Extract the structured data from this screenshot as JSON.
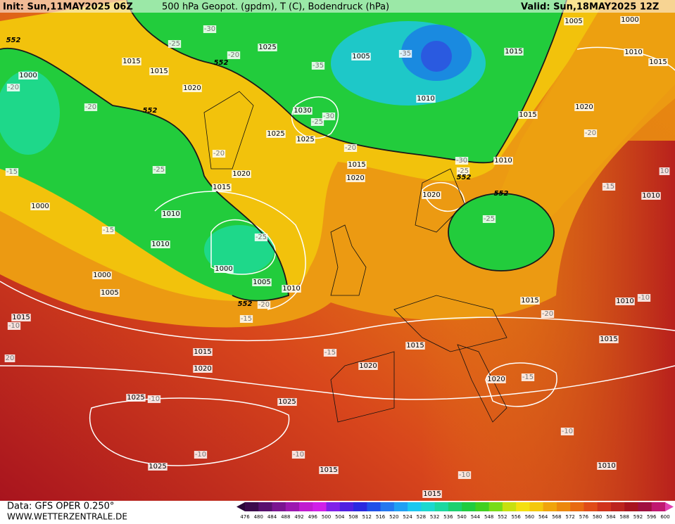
{
  "header": {
    "init": "Init: Sun,11MAY2025 06Z",
    "title": "500 hPa Geopot. (gpdm), T (C), Bodendruck (hPa)",
    "valid": "Valid: Sun,18MAY2025 12Z"
  },
  "footer": {
    "data": "Data: GFS OPER 0.250°",
    "site": "WWW.WETTERZENTRALE.DE"
  },
  "colorbar": {
    "labels": [
      476,
      480,
      484,
      488,
      492,
      496,
      500,
      504,
      508,
      512,
      516,
      520,
      524,
      528,
      532,
      536,
      540,
      544,
      548,
      552,
      556,
      560,
      564,
      568,
      572,
      576,
      580,
      584,
      588,
      592,
      596,
      600
    ]
  },
  "map": {
    "isobar_labels": [
      "1005",
      "1000",
      "1015",
      "1010",
      "1015",
      "1005",
      "1025",
      "1015",
      "1015",
      "1000",
      "1020",
      "1010",
      "1030",
      "1015",
      "1020",
      "1025",
      "1025",
      "1015",
      "1020",
      "1010",
      "1020",
      "1015",
      "1020",
      "1010",
      "1000",
      "1010",
      "1010",
      "1000",
      "1000",
      "1005",
      "1010",
      "1005",
      "1015",
      "1010",
      "1015",
      "1015",
      "1015",
      "1015",
      "1020",
      "1020",
      "1020",
      "1025",
      "1025",
      "1025",
      "1015",
      "1010",
      "1015"
    ],
    "temperature_labels": [
      "-30",
      "-25",
      "-20",
      "-35",
      "-35",
      "-20",
      "-20",
      "-25",
      "-30",
      "-20",
      "-20",
      "-25",
      "-15",
      "-30",
      "-25",
      "-20",
      "-15",
      "-15",
      "-25",
      "-25",
      "-20",
      "-15",
      "-10",
      "-20",
      "-10",
      "-15",
      "-15",
      "-10",
      "-10",
      "-10",
      "-10",
      "-10",
      "20",
      "10"
    ],
    "height_labels": [
      "552",
      "552",
      "552",
      "552",
      "552",
      "552"
    ]
  }
}
